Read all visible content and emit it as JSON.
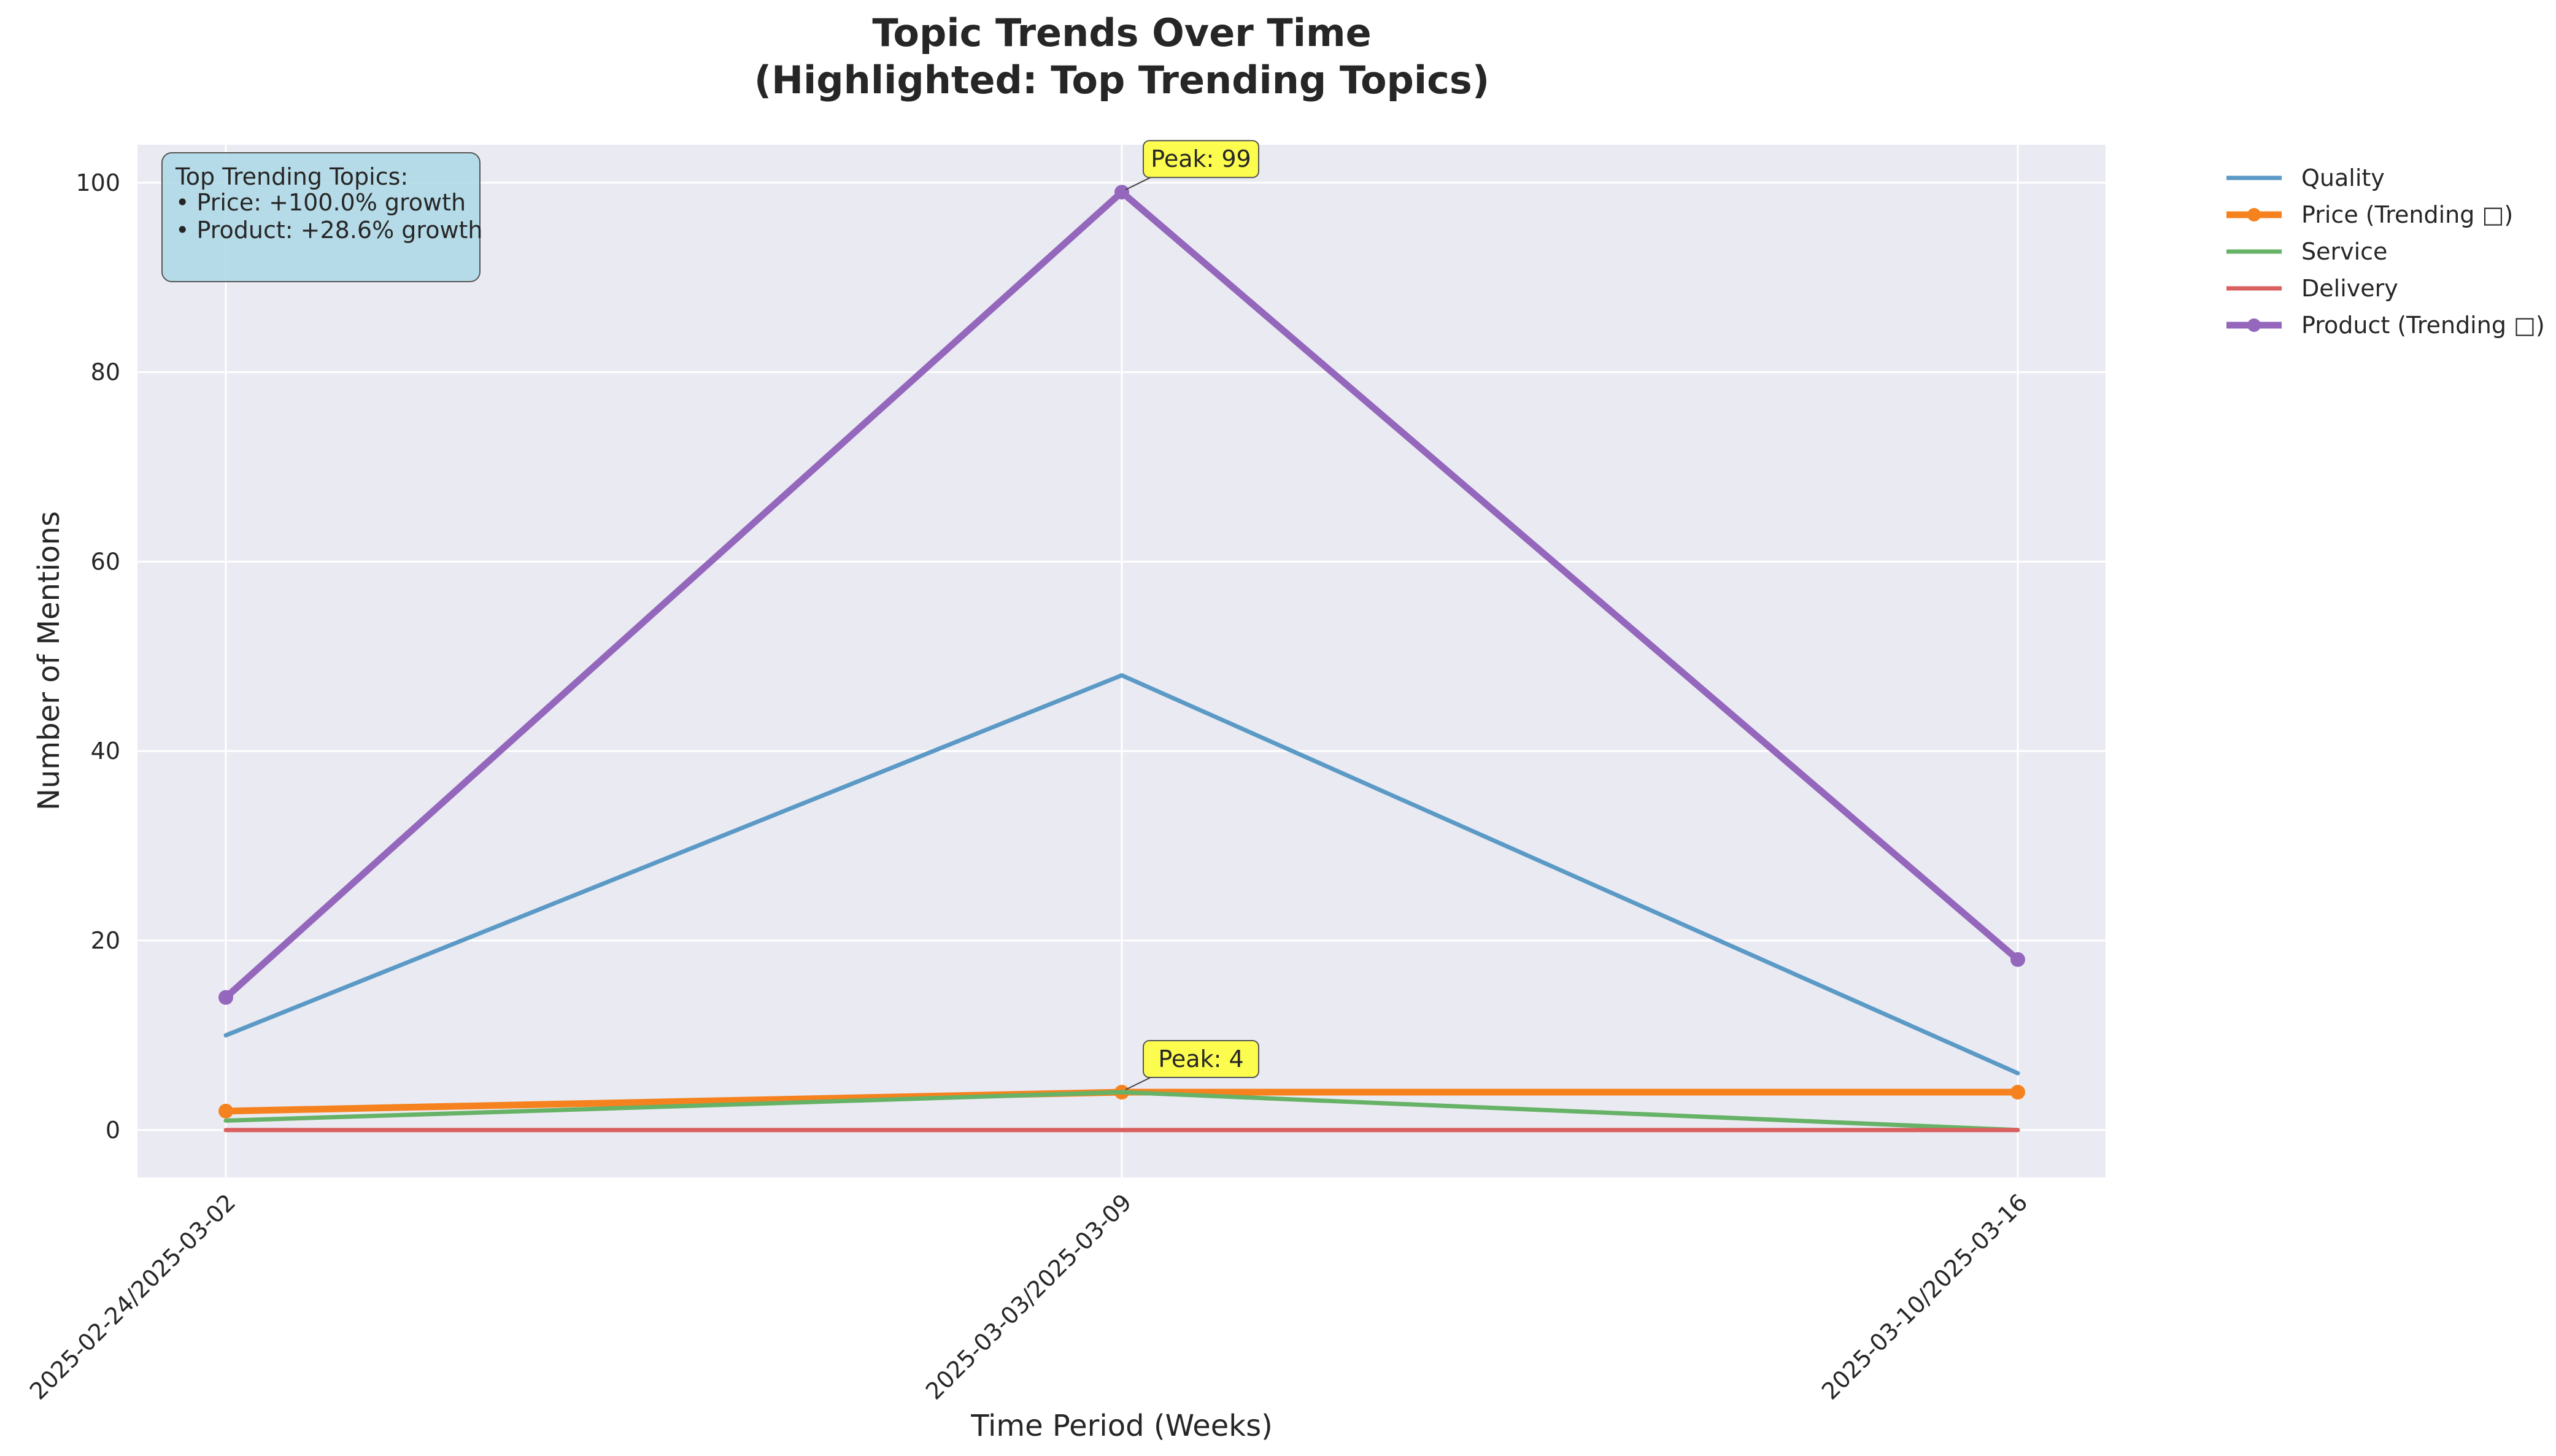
{
  "chart_data": {
    "type": "line",
    "title_line1": "Topic Trends Over Time",
    "title_line2": "(Highlighted: Top Trending Topics)",
    "xlabel": "Time Period (Weeks)",
    "ylabel": "Number of Mentions",
    "categories": [
      "2025-02-24/2025-03-02",
      "2025-03-03/2025-03-09",
      "2025-03-10/2025-03-16"
    ],
    "ylim": [
      -5,
      104
    ],
    "yticks": [
      0,
      20,
      40,
      60,
      80,
      100
    ],
    "grid": true,
    "legend_position": "outside-top-right",
    "series": [
      {
        "name": "Quality",
        "values": [
          10,
          48,
          6
        ],
        "color": "#5b9ac6",
        "trending": false
      },
      {
        "name": "Price (Trending □)",
        "values": [
          2,
          4,
          4
        ],
        "color": "#f5821f",
        "trending": true
      },
      {
        "name": "Service",
        "values": [
          1,
          4,
          0
        ],
        "color": "#66b266",
        "trending": false
      },
      {
        "name": "Delivery",
        "values": [
          0,
          0,
          0
        ],
        "color": "#d9605f",
        "trending": false
      },
      {
        "name": "Product (Trending □)",
        "values": [
          14,
          99,
          18
        ],
        "color": "#9467bd",
        "trending": true
      }
    ],
    "annotations": [
      {
        "text": "Peak: 99",
        "x_index": 1,
        "y": 99
      },
      {
        "text": "Peak: 4",
        "x_index": 1,
        "y": 4
      }
    ],
    "info_box": {
      "lines": [
        "Top Trending Topics:",
        "• Price: +100.0% growth",
        "• Product: +28.6% growth"
      ]
    }
  },
  "colors": {
    "plot_background": "#eaeaf2",
    "grid": "#ffffff",
    "info_box_fill": "#add8e6",
    "peak_box_fill": "#ffff33"
  }
}
